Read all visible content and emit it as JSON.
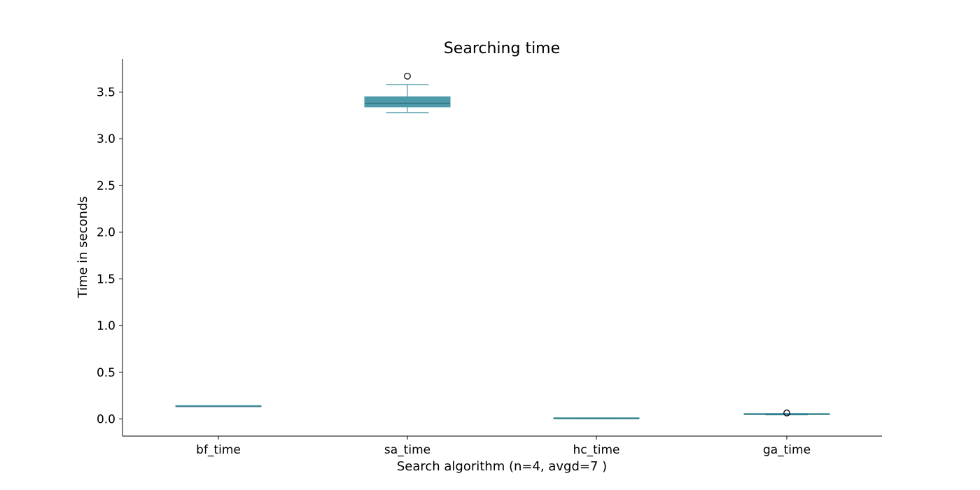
{
  "chart_data": {
    "type": "box",
    "title": "Searching time",
    "xlabel": "Search algorithm (n=4, avgd=7 )",
    "ylabel": "Time in seconds",
    "categories": [
      "bf_time",
      "sa_time",
      "hc_time",
      "ga_time"
    ],
    "yticks": [
      "0.0",
      "0.5",
      "1.0",
      "1.5",
      "2.0",
      "2.5",
      "3.0",
      "3.5"
    ],
    "ylim": [
      -0.18,
      3.85
    ],
    "grid": false,
    "legend": "none",
    "box_color": "#4c9aaa",
    "median_color": "#2e6f7d",
    "series": [
      {
        "category": "bf_time",
        "whisker_low": 0.132,
        "q1": 0.132,
        "median": 0.132,
        "q3": 0.132,
        "whisker_high": 0.132,
        "outliers": []
      },
      {
        "category": "sa_time",
        "whisker_low": 3.28,
        "q1": 3.34,
        "median": 3.38,
        "q3": 3.45,
        "whisker_high": 3.58,
        "outliers": [
          3.67
        ]
      },
      {
        "category": "hc_time",
        "whisker_low": 0.002,
        "q1": 0.002,
        "median": 0.002,
        "q3": 0.002,
        "whisker_high": 0.002,
        "outliers": []
      },
      {
        "category": "ga_time",
        "whisker_low": 0.044,
        "q1": 0.047,
        "median": 0.05,
        "q3": 0.055,
        "whisker_high": 0.058,
        "outliers": [
          0.064
        ]
      }
    ]
  }
}
